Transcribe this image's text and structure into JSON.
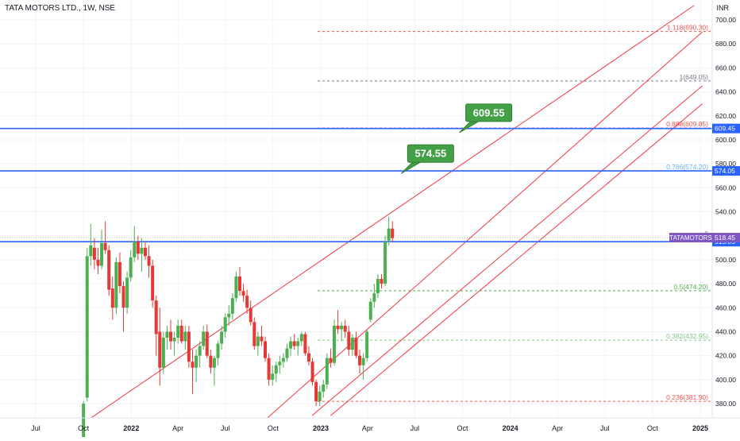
{
  "header": {
    "title": "TATA MOTORS LTD., 1W, NSE"
  },
  "axis": {
    "unit": "INR"
  },
  "colors": {
    "up": "#4caf50",
    "down": "#e53935",
    "channel": "#f23645",
    "level_line": "#2962ff",
    "grid": "#f0f3fa",
    "axis_text": "#131722",
    "callout_fill": "#43a047",
    "symbol_tag": "#7e57c2"
  },
  "chart_data": {
    "type": "candlestick",
    "symbol": "TATA MOTORS LTD.",
    "interval": "1W",
    "exchange": "NSE",
    "ylim": [
      368,
      712
    ],
    "y_ticks": [
      380,
      400,
      420,
      440,
      460,
      480,
      500,
      520,
      540,
      560,
      580,
      600,
      620,
      640,
      660,
      680,
      700
    ],
    "y_tick_labels": [
      "380.00",
      "400.00",
      "420.00",
      "440.00",
      "460.00",
      "480.00",
      "500.00",
      "520.00",
      "540.00",
      "560.00",
      "580.00",
      "600.00",
      "620.00",
      "640.00",
      "660.00",
      "680.00",
      "700.00"
    ],
    "x_ticks": [
      {
        "label": "Jul",
        "date": "2021-07-01"
      },
      {
        "label": "Oct",
        "date": "2021-10-01"
      },
      {
        "label": "2022",
        "date": "2022-01-01"
      },
      {
        "label": "Apr",
        "date": "2022-04-01"
      },
      {
        "label": "Jul",
        "date": "2022-07-01"
      },
      {
        "label": "Oct",
        "date": "2022-10-01"
      },
      {
        "label": "2023",
        "date": "2023-01-01"
      },
      {
        "label": "Apr",
        "date": "2023-04-01"
      },
      {
        "label": "Jul",
        "date": "2023-07-01"
      },
      {
        "label": "Oct",
        "date": "2023-10-01"
      },
      {
        "label": "2024",
        "date": "2024-01-01"
      },
      {
        "label": "Apr",
        "date": "2024-04-01"
      },
      {
        "label": "Jul",
        "date": "2024-07-01"
      },
      {
        "label": "Oct",
        "date": "2024-10-01"
      },
      {
        "label": "2025",
        "date": "2025-01-01"
      }
    ],
    "candles": [
      {
        "d": "2021-10-01",
        "o": 338,
        "h": 382,
        "l": 338,
        "c": 380
      },
      {
        "d": "2021-10-08",
        "o": 385,
        "h": 510,
        "l": 382,
        "c": 503
      },
      {
        "d": "2021-10-15",
        "o": 503,
        "h": 530,
        "l": 495,
        "c": 512
      },
      {
        "d": "2021-10-22",
        "o": 510,
        "h": 518,
        "l": 492,
        "c": 500
      },
      {
        "d": "2021-10-29",
        "o": 500,
        "h": 510,
        "l": 488,
        "c": 495
      },
      {
        "d": "2021-11-05",
        "o": 495,
        "h": 525,
        "l": 492,
        "c": 514
      },
      {
        "d": "2021-11-12",
        "o": 514,
        "h": 532,
        "l": 505,
        "c": 508
      },
      {
        "d": "2021-11-19",
        "o": 508,
        "h": 512,
        "l": 470,
        "c": 475
      },
      {
        "d": "2021-11-26",
        "o": 476,
        "h": 486,
        "l": 450,
        "c": 460
      },
      {
        "d": "2021-12-03",
        "o": 460,
        "h": 502,
        "l": 455,
        "c": 498
      },
      {
        "d": "2021-12-10",
        "o": 498,
        "h": 506,
        "l": 472,
        "c": 478
      },
      {
        "d": "2021-12-17",
        "o": 478,
        "h": 482,
        "l": 440,
        "c": 460
      },
      {
        "d": "2021-12-24",
        "o": 460,
        "h": 490,
        "l": 455,
        "c": 485
      },
      {
        "d": "2021-12-31",
        "o": 485,
        "h": 508,
        "l": 482,
        "c": 502
      },
      {
        "d": "2022-01-07",
        "o": 502,
        "h": 528,
        "l": 498,
        "c": 515
      },
      {
        "d": "2022-01-14",
        "o": 515,
        "h": 520,
        "l": 500,
        "c": 505
      },
      {
        "d": "2022-01-21",
        "o": 505,
        "h": 518,
        "l": 490,
        "c": 510
      },
      {
        "d": "2022-01-28",
        "o": 510,
        "h": 515,
        "l": 500,
        "c": 503
      },
      {
        "d": "2022-02-04",
        "o": 503,
        "h": 512,
        "l": 485,
        "c": 495
      },
      {
        "d": "2022-02-11",
        "o": 495,
        "h": 500,
        "l": 460,
        "c": 466
      },
      {
        "d": "2022-02-18",
        "o": 466,
        "h": 470,
        "l": 420,
        "c": 438
      },
      {
        "d": "2022-02-25",
        "o": 440,
        "h": 460,
        "l": 395,
        "c": 410
      },
      {
        "d": "2022-03-04",
        "o": 410,
        "h": 440,
        "l": 405,
        "c": 435
      },
      {
        "d": "2022-03-11",
        "o": 435,
        "h": 445,
        "l": 425,
        "c": 440
      },
      {
        "d": "2022-03-18",
        "o": 440,
        "h": 450,
        "l": 425,
        "c": 432
      },
      {
        "d": "2022-03-25",
        "o": 432,
        "h": 440,
        "l": 420,
        "c": 435
      },
      {
        "d": "2022-04-01",
        "o": 435,
        "h": 450,
        "l": 430,
        "c": 445
      },
      {
        "d": "2022-04-08",
        "o": 445,
        "h": 450,
        "l": 430,
        "c": 432
      },
      {
        "d": "2022-04-15",
        "o": 432,
        "h": 445,
        "l": 425,
        "c": 440
      },
      {
        "d": "2022-04-22",
        "o": 440,
        "h": 445,
        "l": 410,
        "c": 415
      },
      {
        "d": "2022-04-29",
        "o": 415,
        "h": 425,
        "l": 388,
        "c": 410
      },
      {
        "d": "2022-05-06",
        "o": 410,
        "h": 425,
        "l": 398,
        "c": 420
      },
      {
        "d": "2022-05-13",
        "o": 420,
        "h": 432,
        "l": 410,
        "c": 428
      },
      {
        "d": "2022-05-20",
        "o": 428,
        "h": 445,
        "l": 425,
        "c": 440
      },
      {
        "d": "2022-05-27",
        "o": 440,
        "h": 446,
        "l": 418,
        "c": 420
      },
      {
        "d": "2022-06-03",
        "o": 420,
        "h": 425,
        "l": 405,
        "c": 410
      },
      {
        "d": "2022-06-10",
        "o": 410,
        "h": 420,
        "l": 395,
        "c": 418
      },
      {
        "d": "2022-06-17",
        "o": 418,
        "h": 432,
        "l": 412,
        "c": 430
      },
      {
        "d": "2022-06-24",
        "o": 430,
        "h": 445,
        "l": 425,
        "c": 440
      },
      {
        "d": "2022-07-01",
        "o": 440,
        "h": 455,
        "l": 435,
        "c": 452
      },
      {
        "d": "2022-07-08",
        "o": 452,
        "h": 462,
        "l": 445,
        "c": 455
      },
      {
        "d": "2022-07-15",
        "o": 455,
        "h": 472,
        "l": 450,
        "c": 468
      },
      {
        "d": "2022-07-22",
        "o": 468,
        "h": 490,
        "l": 465,
        "c": 486
      },
      {
        "d": "2022-07-29",
        "o": 486,
        "h": 494,
        "l": 470,
        "c": 474
      },
      {
        "d": "2022-08-05",
        "o": 474,
        "h": 480,
        "l": 465,
        "c": 470
      },
      {
        "d": "2022-08-12",
        "o": 470,
        "h": 475,
        "l": 455,
        "c": 460
      },
      {
        "d": "2022-08-19",
        "o": 460,
        "h": 466,
        "l": 445,
        "c": 448
      },
      {
        "d": "2022-08-26",
        "o": 448,
        "h": 452,
        "l": 425,
        "c": 428
      },
      {
        "d": "2022-09-02",
        "o": 428,
        "h": 440,
        "l": 420,
        "c": 436
      },
      {
        "d": "2022-09-09",
        "o": 436,
        "h": 445,
        "l": 428,
        "c": 432
      },
      {
        "d": "2022-09-16",
        "o": 432,
        "h": 436,
        "l": 415,
        "c": 418
      },
      {
        "d": "2022-09-23",
        "o": 418,
        "h": 422,
        "l": 395,
        "c": 400
      },
      {
        "d": "2022-09-30",
        "o": 400,
        "h": 412,
        "l": 395,
        "c": 405
      },
      {
        "d": "2022-10-07",
        "o": 405,
        "h": 415,
        "l": 398,
        "c": 412
      },
      {
        "d": "2022-10-14",
        "o": 412,
        "h": 420,
        "l": 405,
        "c": 415
      },
      {
        "d": "2022-10-21",
        "o": 415,
        "h": 422,
        "l": 410,
        "c": 418
      },
      {
        "d": "2022-10-28",
        "o": 418,
        "h": 430,
        "l": 415,
        "c": 426
      },
      {
        "d": "2022-11-04",
        "o": 426,
        "h": 436,
        "l": 420,
        "c": 432
      },
      {
        "d": "2022-11-11",
        "o": 432,
        "h": 438,
        "l": 425,
        "c": 428
      },
      {
        "d": "2022-11-18",
        "o": 428,
        "h": 435,
        "l": 420,
        "c": 432
      },
      {
        "d": "2022-11-25",
        "o": 432,
        "h": 440,
        "l": 428,
        "c": 438
      },
      {
        "d": "2022-12-02",
        "o": 438,
        "h": 440,
        "l": 420,
        "c": 422
      },
      {
        "d": "2022-12-09",
        "o": 422,
        "h": 428,
        "l": 412,
        "c": 415
      },
      {
        "d": "2022-12-16",
        "o": 415,
        "h": 418,
        "l": 395,
        "c": 398
      },
      {
        "d": "2022-12-23",
        "o": 398,
        "h": 400,
        "l": 378,
        "c": 382
      },
      {
        "d": "2022-12-30",
        "o": 382,
        "h": 395,
        "l": 378,
        "c": 390
      },
      {
        "d": "2023-01-06",
        "o": 390,
        "h": 400,
        "l": 385,
        "c": 396
      },
      {
        "d": "2023-01-13",
        "o": 396,
        "h": 422,
        "l": 392,
        "c": 418
      },
      {
        "d": "2023-01-20",
        "o": 418,
        "h": 426,
        "l": 410,
        "c": 414
      },
      {
        "d": "2023-01-27",
        "o": 414,
        "h": 450,
        "l": 412,
        "c": 445
      },
      {
        "d": "2023-02-03",
        "o": 445,
        "h": 458,
        "l": 438,
        "c": 442
      },
      {
        "d": "2023-02-10",
        "o": 442,
        "h": 448,
        "l": 432,
        "c": 445
      },
      {
        "d": "2023-02-17",
        "o": 445,
        "h": 450,
        "l": 435,
        "c": 440
      },
      {
        "d": "2023-02-24",
        "o": 440,
        "h": 445,
        "l": 420,
        "c": 425
      },
      {
        "d": "2023-03-03",
        "o": 425,
        "h": 438,
        "l": 420,
        "c": 435
      },
      {
        "d": "2023-03-10",
        "o": 435,
        "h": 440,
        "l": 418,
        "c": 420
      },
      {
        "d": "2023-03-17",
        "o": 420,
        "h": 425,
        "l": 405,
        "c": 412
      },
      {
        "d": "2023-03-24",
        "o": 412,
        "h": 422,
        "l": 400,
        "c": 418
      },
      {
        "d": "2023-03-31",
        "o": 418,
        "h": 442,
        "l": 415,
        "c": 440
      },
      {
        "d": "2023-04-07",
        "o": 450,
        "h": 468,
        "l": 448,
        "c": 465
      },
      {
        "d": "2023-04-14",
        "o": 465,
        "h": 480,
        "l": 460,
        "c": 472
      },
      {
        "d": "2023-04-21",
        "o": 472,
        "h": 488,
        "l": 468,
        "c": 484
      },
      {
        "d": "2023-04-28",
        "o": 484,
        "h": 488,
        "l": 476,
        "c": 480
      },
      {
        "d": "2023-05-05",
        "o": 480,
        "h": 520,
        "l": 478,
        "c": 515
      },
      {
        "d": "2023-05-12",
        "o": 516,
        "h": 536,
        "l": 512,
        "c": 526
      },
      {
        "d": "2023-05-19",
        "o": 526,
        "h": 532,
        "l": 515,
        "c": 518
      }
    ],
    "horizontal_levels": [
      {
        "price": 515.05,
        "label": "515.05"
      },
      {
        "price": 574.05,
        "label": "574.05"
      },
      {
        "price": 609.45,
        "label": "609.45"
      }
    ],
    "last_price": {
      "value": 518.45,
      "label": "518.45",
      "symbol_tag": "TATAMOTORS"
    },
    "fib_levels": [
      {
        "label": "1.118(690.30)",
        "price": 690.3,
        "color": "#ef5350"
      },
      {
        "label": "1(649.05)",
        "price": 649.05,
        "color": "#787b86"
      },
      {
        "label": "0.888(609.85)",
        "price": 609.85,
        "color": "#ef5350"
      },
      {
        "label": "0.786(574.20)",
        "price": 574.2,
        "color": "#64b5f6"
      },
      {
        "label": "0",
        "price": 518.45,
        "color": "#787b86"
      },
      {
        "label": "0.5(474.20)",
        "price": 474.2,
        "color": "#4caf50"
      },
      {
        "label": "0.382(432.95)",
        "price": 432.95,
        "color": "#81c784"
      },
      {
        "label": "0.236(381.90)",
        "price": 381.9,
        "color": "#ef5350"
      }
    ],
    "channel_lines": [
      {
        "p1": {
          "d": "2021-10-15",
          "v": 368
        },
        "p2": {
          "d": "2024-12-20",
          "v": 712
        }
      },
      {
        "p1": {
          "d": "2022-09-20",
          "v": 368
        },
        "p2": {
          "d": "2025-01-05",
          "v": 690
        }
      },
      {
        "p1": {
          "d": "2022-12-15",
          "v": 370
        },
        "p2": {
          "d": "2025-01-05",
          "v": 645
        }
      },
      {
        "p1": {
          "d": "2023-01-20",
          "v": 370
        },
        "p2": {
          "d": "2025-01-05",
          "v": 630
        }
      }
    ],
    "callouts": [
      {
        "label": "574.55",
        "anchor": {
          "d": "2023-06-05",
          "v": 572
        }
      },
      {
        "label": "609.55",
        "anchor": {
          "d": "2023-09-25",
          "v": 606
        }
      }
    ]
  }
}
